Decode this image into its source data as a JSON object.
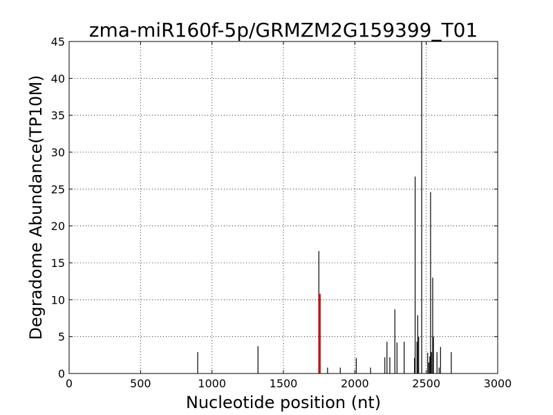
{
  "chart_data": {
    "type": "bar",
    "title": "zma-miR160f-5p/GRMZM2G159399_T01",
    "xlabel": "Nucleotide position (nt)",
    "ylabel": "Degradome Abundance(TP10M)",
    "xlim": [
      0,
      3000
    ],
    "ylim": [
      0,
      45
    ],
    "xticks": [
      0,
      500,
      1000,
      1500,
      2000,
      2500,
      3000
    ],
    "yticks": [
      0,
      5,
      10,
      15,
      20,
      25,
      30,
      35,
      40,
      45
    ],
    "grid": true,
    "colors": {
      "default": "#000000",
      "highlight": "#ff0000"
    },
    "series": [
      {
        "values": [
          {
            "x": 900,
            "y": 2.9
          },
          {
            "x": 1322,
            "y": 3.7
          },
          {
            "x": 1748,
            "y": 16.6
          },
          {
            "x": 1809,
            "y": 0.8
          },
          {
            "x": 1898,
            "y": 0.8
          },
          {
            "x": 2010,
            "y": 2.1
          },
          {
            "x": 2110,
            "y": 0.8
          },
          {
            "x": 2210,
            "y": 2.2
          },
          {
            "x": 2225,
            "y": 4.3
          },
          {
            "x": 2245,
            "y": 2.2
          },
          {
            "x": 2280,
            "y": 8.7
          },
          {
            "x": 2295,
            "y": 4.2
          },
          {
            "x": 2345,
            "y": 4.3
          },
          {
            "x": 2418,
            "y": 2.1
          },
          {
            "x": 2422,
            "y": 26.7
          },
          {
            "x": 2435,
            "y": 4.3
          },
          {
            "x": 2440,
            "y": 7.9
          },
          {
            "x": 2447,
            "y": 5.0
          },
          {
            "x": 2468,
            "y": 45.0
          },
          {
            "x": 2510,
            "y": 2.8
          },
          {
            "x": 2518,
            "y": 1.5
          },
          {
            "x": 2525,
            "y": 2.3
          },
          {
            "x": 2530,
            "y": 24.6
          },
          {
            "x": 2536,
            "y": 2.9
          },
          {
            "x": 2545,
            "y": 13.0
          },
          {
            "x": 2550,
            "y": 5.0
          },
          {
            "x": 2575,
            "y": 2.9
          },
          {
            "x": 2590,
            "y": 0.8
          },
          {
            "x": 2600,
            "y": 3.6
          },
          {
            "x": 2675,
            "y": 2.9
          }
        ]
      }
    ],
    "highlight": [
      {
        "x": 1755,
        "y": 10.8
      }
    ]
  }
}
